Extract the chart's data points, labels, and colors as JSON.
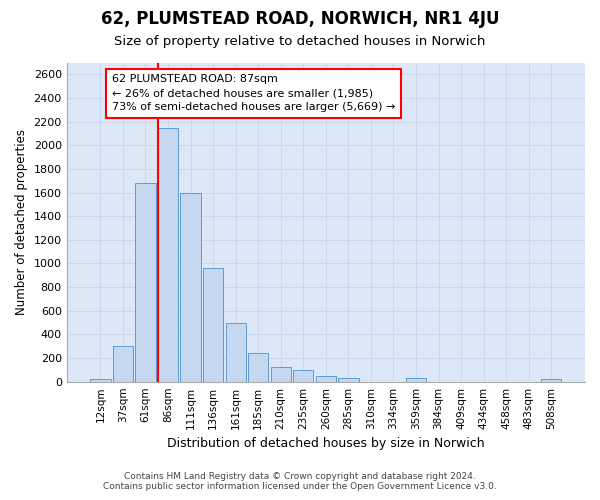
{
  "title": "62, PLUMSTEAD ROAD, NORWICH, NR1 4JU",
  "subtitle": "Size of property relative to detached houses in Norwich",
  "xlabel": "Distribution of detached houses by size in Norwich",
  "ylabel": "Number of detached properties",
  "footer_line1": "Contains HM Land Registry data © Crown copyright and database right 2024.",
  "footer_line2": "Contains public sector information licensed under the Open Government Licence v3.0.",
  "bar_labels": [
    "12sqm",
    "37sqm",
    "61sqm",
    "86sqm",
    "111sqm",
    "136sqm",
    "161sqm",
    "185sqm",
    "210sqm",
    "235sqm",
    "260sqm",
    "285sqm",
    "310sqm",
    "334sqm",
    "359sqm",
    "384sqm",
    "409sqm",
    "434sqm",
    "458sqm",
    "483sqm",
    "508sqm"
  ],
  "bar_values": [
    25,
    300,
    1680,
    2150,
    1600,
    960,
    500,
    240,
    120,
    100,
    50,
    30,
    0,
    0,
    30,
    0,
    0,
    0,
    0,
    0,
    20
  ],
  "bar_color": "#c5d8f0",
  "bar_edge_color": "#5b9bd5",
  "grid_color": "#c8d8ee",
  "background_color": "#dce8f8",
  "annotation_line1": "62 PLUMSTEAD ROAD: 87sqm",
  "annotation_line2": "← 26% of detached houses are smaller (1,985)",
  "annotation_line3": "73% of semi-detached houses are larger (5,669) →",
  "vline_color": "red",
  "vline_x_idx": 3,
  "ylim": [
    0,
    2700
  ],
  "yticks": [
    0,
    200,
    400,
    600,
    800,
    1000,
    1200,
    1400,
    1600,
    1800,
    2000,
    2200,
    2400,
    2600
  ]
}
